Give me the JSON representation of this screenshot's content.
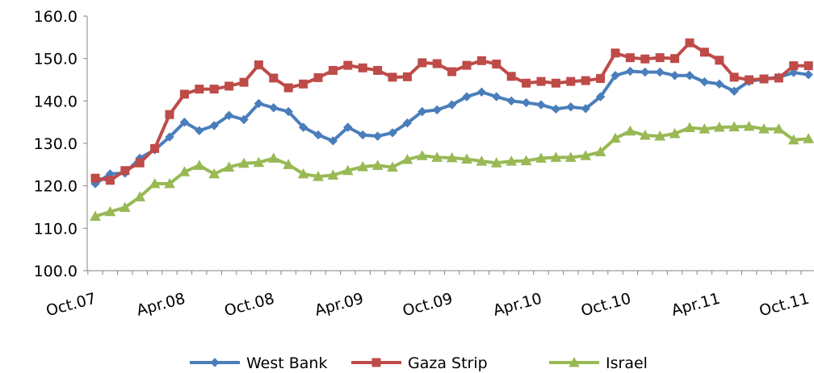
{
  "chart_data": {
    "type": "line",
    "categories": [
      "Oct.07",
      null,
      null,
      null,
      null,
      null,
      "Apr.08",
      null,
      null,
      null,
      null,
      null,
      "Oct.08",
      null,
      null,
      null,
      null,
      null,
      "Apr.09",
      null,
      null,
      null,
      null,
      null,
      "Oct.09",
      null,
      null,
      null,
      null,
      null,
      "Apr.10",
      null,
      null,
      null,
      null,
      null,
      "Oct.10",
      null,
      null,
      null,
      null,
      null,
      "Apr.11",
      null,
      null,
      null,
      null,
      null,
      "Oct.11"
    ],
    "series": [
      {
        "name": "West Bank",
        "color": "#4a7ebb",
        "marker": "diamond",
        "values": [
          120.5,
          122.8,
          123,
          126.5,
          128.5,
          131.5,
          135,
          133,
          134.2,
          136.6,
          135.6,
          139.4,
          138.4,
          137.5,
          133.8,
          132,
          130.6,
          133.8,
          132,
          131.7,
          132.5,
          134.8,
          137.5,
          137.9,
          139.1,
          141,
          142.1,
          141,
          140,
          139.6,
          139.1,
          138.1,
          138.6,
          138.2,
          141,
          146,
          147,
          146.8,
          146.8,
          146,
          146,
          144.5,
          144,
          142.3,
          144.6,
          145.2,
          145.6,
          146.7,
          146.2
        ]
      },
      {
        "name": "Gaza Strip",
        "color": "#be4b48",
        "marker": "square",
        "values": [
          121.8,
          121.3,
          123.6,
          125.4,
          128.8,
          136.8,
          141.6,
          142.8,
          142.8,
          143.5,
          144.4,
          148.5,
          145.4,
          143.1,
          144,
          145.5,
          147.2,
          148.4,
          147.8,
          147.2,
          145.6,
          145.7,
          149,
          148.8,
          146.9,
          148.4,
          149.5,
          148.7,
          145.8,
          144.2,
          144.6,
          144.2,
          144.6,
          144.8,
          145.3,
          151.3,
          150.2,
          149.9,
          150.2,
          150,
          153.7,
          151.5,
          149.6,
          145.6,
          145,
          145.2,
          145.4,
          148.3,
          148.3
        ]
      },
      {
        "name": "Israel",
        "color": "#98b954",
        "marker": "triangle",
        "values": [
          112.8,
          113.9,
          114.9,
          117.4,
          120.5,
          120.5,
          123.3,
          124.8,
          122.8,
          124.4,
          125.3,
          125.5,
          126.5,
          125,
          122.8,
          122.2,
          122.5,
          123.6,
          124.5,
          124.8,
          124.4,
          126.2,
          127.1,
          126.7,
          126.6,
          126.3,
          125.8,
          125.4,
          125.8,
          125.9,
          126.5,
          126.7,
          126.7,
          127.1,
          128,
          131.2,
          132.9,
          131.9,
          131.7,
          132.3,
          133.7,
          133.4,
          133.8,
          133.9,
          134,
          133.4,
          133.4,
          130.8,
          131.1
        ]
      }
    ],
    "ylim": [
      100,
      160
    ],
    "yticks": [
      {
        "value": 100,
        "label": "100.0"
      },
      {
        "value": 110,
        "label": "110.0"
      },
      {
        "value": 120,
        "label": "120.0"
      },
      {
        "value": 130,
        "label": "130.0"
      },
      {
        "value": 140,
        "label": "140.0"
      },
      {
        "value": 150,
        "label": "150.0"
      },
      {
        "value": 160,
        "label": "160.0"
      }
    ],
    "grid": false,
    "legend": "bottom"
  }
}
